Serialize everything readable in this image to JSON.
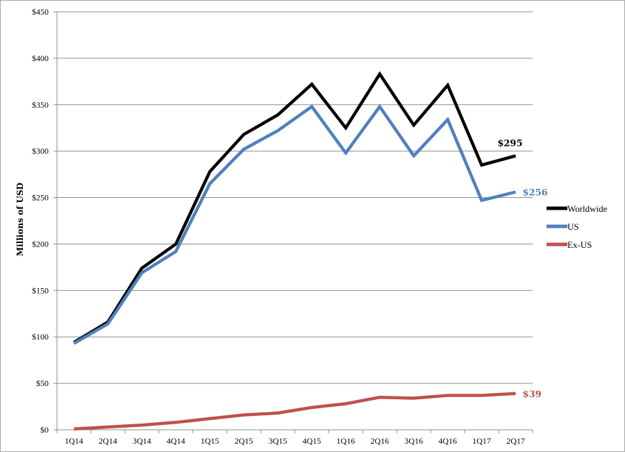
{
  "chart_data": {
    "type": "line",
    "title": "",
    "xlabel": "",
    "ylabel": "Millions of USD",
    "ylim": [
      0,
      450
    ],
    "y_ticks": [
      "$0",
      "$50",
      "$100",
      "$150",
      "$200",
      "$250",
      "$300",
      "$350",
      "$400",
      "$450"
    ],
    "y_tick_values": [
      0,
      50,
      100,
      150,
      200,
      250,
      300,
      350,
      400,
      450
    ],
    "categories": [
      "1Q14",
      "2Q14",
      "3Q14",
      "4Q14",
      "1Q15",
      "2Q15",
      "3Q15",
      "4Q15",
      "1Q16",
      "2Q16",
      "3Q16",
      "4Q16",
      "1Q17",
      "2Q17"
    ],
    "grid": true,
    "legend_position": "right",
    "series": [
      {
        "name": "Worldwide",
        "color": "#000000",
        "values": [
          94,
          116,
          174,
          200,
          278,
          318,
          339,
          372,
          325,
          383,
          328,
          371,
          285,
          295
        ],
        "end_label": "$295"
      },
      {
        "name": "US",
        "color": "#4f81bd",
        "values": [
          93,
          114,
          169,
          192,
          265,
          302,
          322,
          348,
          298,
          348,
          295,
          334,
          247,
          256
        ],
        "end_label": "$256"
      },
      {
        "name": "Ex-US",
        "color": "#c0504d",
        "values": [
          1,
          3,
          5,
          8,
          12,
          16,
          18,
          24,
          28,
          35,
          34,
          37,
          37,
          39
        ],
        "end_label": "$39"
      }
    ]
  }
}
